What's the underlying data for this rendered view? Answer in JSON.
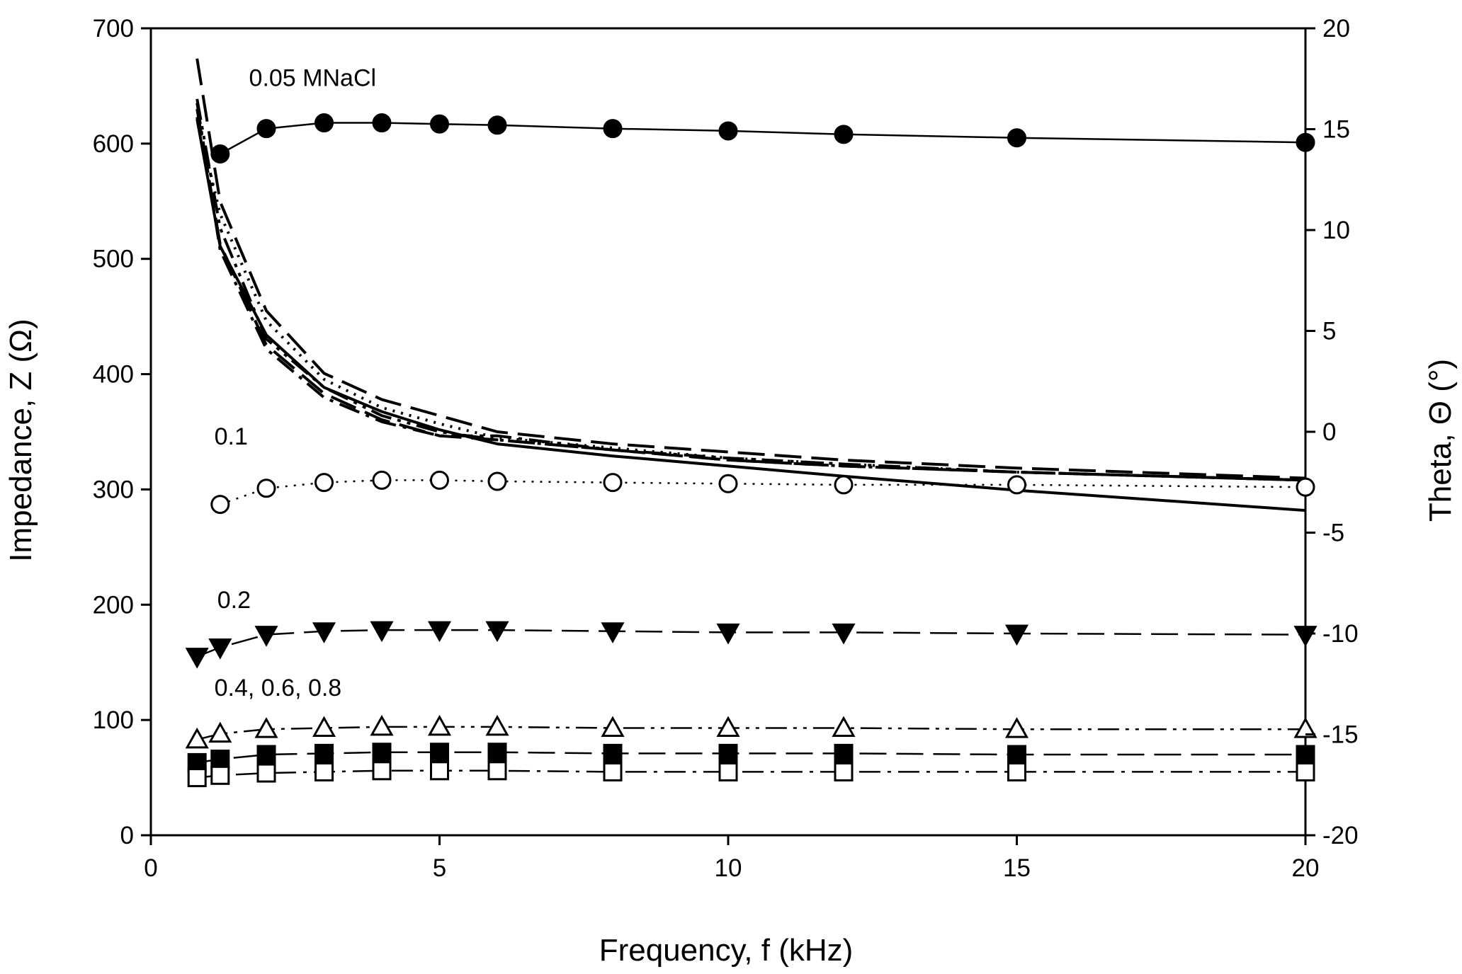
{
  "chart_data": {
    "type": "line",
    "xlabel": "Frequency, f  (kHz)",
    "ylabel_left": "Impedance, Z  (Ω)",
    "ylabel_right": "Theta, Θ  (°)",
    "xlim": [
      0,
      20
    ],
    "ylim_left": [
      0,
      700
    ],
    "ylim_right": [
      -20,
      20
    ],
    "x_ticks": [
      "0",
      "5",
      "10",
      "15",
      "20"
    ],
    "y_left_ticks": [
      "0",
      "100",
      "200",
      "300",
      "400",
      "500",
      "600",
      "700"
    ],
    "y_right_ticks": [
      "-20",
      "-15",
      "-10",
      "-5",
      "0",
      "5",
      "10",
      "15",
      "20"
    ],
    "grid": false,
    "annotations": [
      {
        "text": "0.05 MNaCl",
        "x": 1.7,
        "y": 650,
        "axis": "left"
      },
      {
        "text": "0.1",
        "x": 1.1,
        "y": 339,
        "axis": "left"
      },
      {
        "text": "0.2",
        "x": 1.15,
        "y": 197,
        "axis": "left"
      },
      {
        "text": "0.4, 0.6, 0.8",
        "x": 1.1,
        "y": 121,
        "axis": "left"
      }
    ],
    "impedance_series": [
      {
        "name": "0.05 MNaCl",
        "axis": "left",
        "marker": "filled-circle",
        "line": "solid",
        "x": [
          1.2,
          2,
          3,
          4,
          5,
          6,
          8,
          10,
          12,
          15,
          20
        ],
        "values": [
          591,
          613,
          618,
          618,
          617,
          616,
          613,
          611,
          608,
          605,
          601
        ]
      },
      {
        "name": "0.1",
        "axis": "left",
        "marker": "open-circle",
        "line": "dotted",
        "x": [
          1.2,
          2,
          3,
          4,
          5,
          6,
          8,
          10,
          12,
          15,
          20
        ],
        "values": [
          287,
          301,
          306,
          308,
          308,
          307,
          306,
          305,
          304,
          304,
          302
        ]
      },
      {
        "name": "0.2",
        "axis": "left",
        "marker": "filled-triangle-down",
        "line": "long-dash",
        "x": [
          0.8,
          1.2,
          2,
          3,
          4,
          5,
          6,
          8,
          10,
          12,
          15,
          20
        ],
        "values": [
          155,
          163,
          174,
          177,
          178,
          178,
          178,
          177,
          176,
          176,
          175,
          174
        ]
      },
      {
        "name": "0.4",
        "axis": "left",
        "marker": "open-triangle-up",
        "line": "dash-dot-dot",
        "x": [
          0.8,
          1.2,
          2,
          3,
          4,
          5,
          6,
          8,
          10,
          12,
          15,
          20
        ],
        "values": [
          83,
          88,
          92,
          93,
          94,
          94,
          94,
          93,
          93,
          93,
          92,
          92
        ]
      },
      {
        "name": "0.6",
        "axis": "left",
        "marker": "filled-square",
        "line": "long-dash",
        "x": [
          0.8,
          1.2,
          2,
          3,
          4,
          5,
          6,
          8,
          10,
          12,
          15,
          20
        ],
        "values": [
          63,
          66,
          70,
          71,
          72,
          72,
          72,
          71,
          71,
          71,
          70,
          70
        ]
      },
      {
        "name": "0.8",
        "axis": "left",
        "marker": "open-square",
        "line": "dash-dot",
        "x": [
          0.8,
          1.2,
          2,
          3,
          4,
          5,
          6,
          8,
          10,
          12,
          15,
          20
        ],
        "values": [
          50,
          52,
          54,
          55,
          56,
          56,
          56,
          55,
          55,
          55,
          55,
          55
        ]
      }
    ],
    "theta_series": [
      {
        "name": "0.05 MNaCl theta",
        "axis": "right",
        "line": "solid",
        "x": [
          0.8,
          1.2,
          2,
          3,
          4,
          5,
          6,
          8,
          10,
          12,
          15,
          20
        ],
        "values": [
          15.5,
          9.2,
          4.8,
          2.2,
          1.0,
          0.1,
          -0.6,
          -1.2,
          -1.7,
          -2.2,
          -2.9,
          -3.9
        ]
      },
      {
        "name": "0.1 theta",
        "axis": "right",
        "line": "dotted",
        "x": [
          0.8,
          1.2,
          2,
          3,
          4,
          5,
          6,
          8,
          10,
          12,
          15,
          20
        ],
        "values": [
          15.6,
          10.8,
          5.5,
          2.6,
          1.2,
          0.4,
          -0.3,
          -0.8,
          -1.3,
          -1.6,
          -2.0,
          -2.4
        ]
      },
      {
        "name": "0.2 theta",
        "axis": "right",
        "line": "long-dash",
        "x": [
          0.8,
          1.2,
          2,
          3,
          4,
          5,
          6,
          8,
          10,
          12,
          15,
          20
        ],
        "values": [
          18.5,
          11.4,
          6.0,
          2.9,
          1.6,
          0.8,
          0.0,
          -0.6,
          -1.0,
          -1.4,
          -1.8,
          -2.3
        ]
      },
      {
        "name": "0.4 theta",
        "axis": "right",
        "line": "dash-dot-dot",
        "x": [
          0.8,
          1.2,
          2,
          3,
          4,
          5,
          6,
          8,
          10,
          12,
          15,
          20
        ],
        "values": [
          16.5,
          10.1,
          4.6,
          2.2,
          0.8,
          0.0,
          -0.4,
          -0.9,
          -1.4,
          -1.7,
          -2.0,
          -2.4
        ]
      },
      {
        "name": "0.6 theta",
        "axis": "right",
        "line": "long-dash",
        "x": [
          0.8,
          1.2,
          2,
          3,
          4,
          5,
          6,
          8,
          10,
          12,
          15,
          20
        ],
        "values": [
          16.0,
          9.3,
          4.3,
          1.9,
          0.6,
          -0.2,
          -0.4,
          -0.9,
          -1.4,
          -1.7,
          -2.0,
          -2.4
        ]
      },
      {
        "name": "0.8 theta",
        "axis": "right",
        "line": "dash-dot",
        "x": [
          0.8,
          1.2,
          2,
          3,
          4,
          5,
          6,
          8,
          10,
          12,
          15,
          20
        ],
        "values": [
          16.3,
          9.0,
          4.1,
          1.7,
          0.5,
          -0.2,
          -0.2,
          -0.9,
          -1.3,
          -1.6,
          -2.0,
          -2.4
        ]
      }
    ]
  }
}
